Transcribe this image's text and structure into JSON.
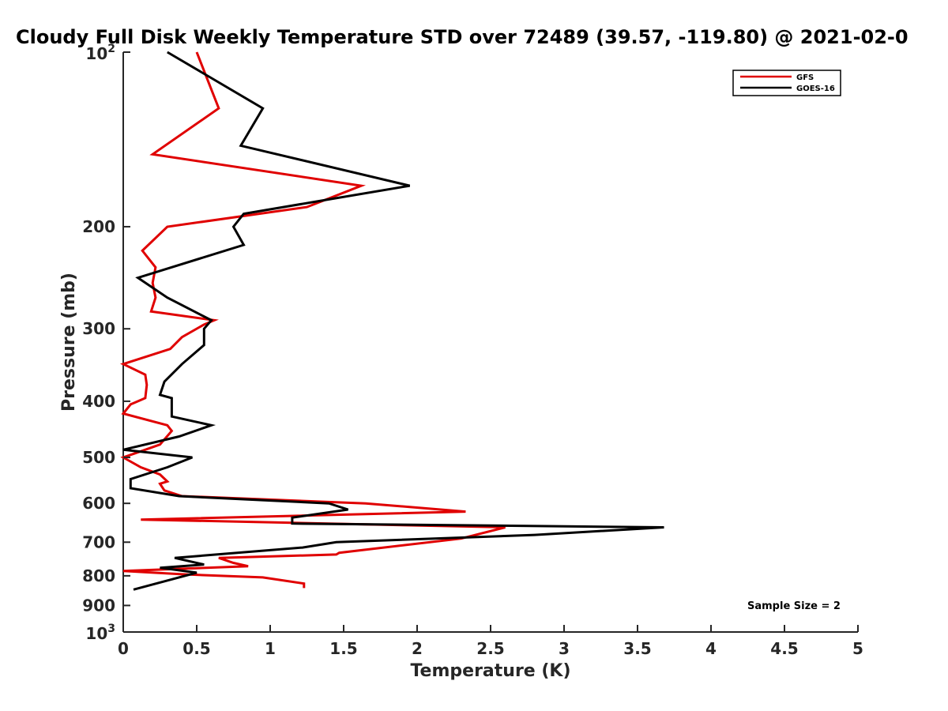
{
  "chart_data": {
    "type": "line",
    "title": "Cloudy Full Disk Weekly Temperature STD over 72489 (39.57, -119.80) @ 2021-02-0",
    "xlabel": "Temperature (K)",
    "ylabel": "Pressure (mb)",
    "xlim": [
      0,
      5
    ],
    "ylim": [
      100,
      1000
    ],
    "y_scale": "log",
    "y_reversed": true,
    "x_ticks": [
      "0",
      "0.5",
      "1",
      "1.5",
      "2",
      "2.5",
      "3",
      "3.5",
      "4",
      "4.5",
      "5"
    ],
    "y_ticks": [
      {
        "value": 100,
        "base": "10",
        "exp": "2"
      },
      {
        "value": 200,
        "label": "200"
      },
      {
        "value": 300,
        "label": "300"
      },
      {
        "value": 400,
        "label": "400"
      },
      {
        "value": 500,
        "label": "500"
      },
      {
        "value": 600,
        "label": "600"
      },
      {
        "value": 700,
        "label": "700"
      },
      {
        "value": 800,
        "label": "800"
      },
      {
        "value": 900,
        "label": "900"
      },
      {
        "value": 1000,
        "base": "10",
        "exp": "3"
      }
    ],
    "legend_position": "top-right",
    "grid": false,
    "series": [
      {
        "name": "GFS",
        "color": "#e00000",
        "points": [
          [
            0.5,
            100
          ],
          [
            0.65,
            125
          ],
          [
            0.2,
            150
          ],
          [
            1.62,
            170
          ],
          [
            1.25,
            185
          ],
          [
            0.3,
            200
          ],
          [
            0.13,
            220
          ],
          [
            0.22,
            235
          ],
          [
            0.2,
            250
          ],
          [
            0.22,
            265
          ],
          [
            0.19,
            280
          ],
          [
            0.62,
            290
          ],
          [
            0.55,
            295
          ],
          [
            0.4,
            310
          ],
          [
            0.32,
            325
          ],
          [
            0.0,
            345
          ],
          [
            0.15,
            360
          ],
          [
            0.16,
            375
          ],
          [
            0.15,
            395
          ],
          [
            0.05,
            405
          ],
          [
            0.0,
            420
          ],
          [
            0.3,
            440
          ],
          [
            0.33,
            450
          ],
          [
            0.25,
            475
          ],
          [
            0.1,
            490
          ],
          [
            0.0,
            500
          ],
          [
            0.12,
            520
          ],
          [
            0.25,
            535
          ],
          [
            0.3,
            550
          ],
          [
            0.25,
            555
          ],
          [
            0.28,
            570
          ],
          [
            0.4,
            583
          ],
          [
            1.65,
            600
          ],
          [
            2.33,
            620
          ],
          [
            0.12,
            640
          ],
          [
            2.6,
            660
          ],
          [
            2.3,
            690
          ],
          [
            1.47,
            730
          ],
          [
            1.45,
            735
          ],
          [
            0.65,
            745
          ],
          [
            0.75,
            760
          ],
          [
            0.85,
            770
          ],
          [
            0.0,
            785
          ],
          [
            0.4,
            795
          ],
          [
            0.95,
            805
          ],
          [
            1.23,
            825
          ],
          [
            1.23,
            840
          ]
        ]
      },
      {
        "name": "GOES-16",
        "color": "#000000",
        "points": [
          [
            0.3,
            100
          ],
          [
            0.95,
            125
          ],
          [
            0.8,
            145
          ],
          [
            1.95,
            170
          ],
          [
            0.82,
            190
          ],
          [
            0.75,
            200
          ],
          [
            0.82,
            215
          ],
          [
            0.1,
            245
          ],
          [
            0.3,
            265
          ],
          [
            0.6,
            290
          ],
          [
            0.55,
            300
          ],
          [
            0.55,
            320
          ],
          [
            0.4,
            345
          ],
          [
            0.28,
            370
          ],
          [
            0.25,
            390
          ],
          [
            0.33,
            395
          ],
          [
            0.33,
            425
          ],
          [
            0.6,
            440
          ],
          [
            0.38,
            460
          ],
          [
            0.0,
            485
          ],
          [
            0.47,
            500
          ],
          [
            0.3,
            520
          ],
          [
            0.05,
            545
          ],
          [
            0.05,
            565
          ],
          [
            0.38,
            583
          ],
          [
            1.4,
            600
          ],
          [
            1.53,
            615
          ],
          [
            1.15,
            635
          ],
          [
            1.15,
            650
          ],
          [
            3.68,
            660
          ],
          [
            2.8,
            680
          ],
          [
            1.45,
            700
          ],
          [
            1.22,
            715
          ],
          [
            0.35,
            745
          ],
          [
            0.55,
            765
          ],
          [
            0.25,
            775
          ],
          [
            0.5,
            790
          ],
          [
            0.07,
            845
          ]
        ]
      }
    ],
    "annotations": [
      "Sample Size = 2"
    ]
  }
}
